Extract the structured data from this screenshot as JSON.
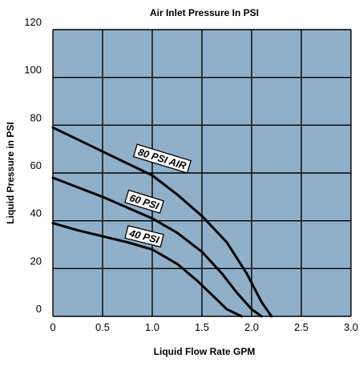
{
  "chart_data": {
    "type": "line",
    "title": "Air Inlet Pressure In PSI",
    "xlabel": "Liquid Flow Rate GPM",
    "ylabel": "Liquid Pressure in PSI",
    "xlim": [
      0,
      3.0
    ],
    "ylim": [
      0,
      120
    ],
    "x_ticks": [
      0,
      0.5,
      1.0,
      1.5,
      2.0,
      2.5,
      3.0
    ],
    "x_tick_labels": [
      "0",
      "0.5",
      "1.0",
      "1.5",
      "2.0",
      "2.5",
      "3.0"
    ],
    "y_ticks": [
      0,
      20,
      40,
      60,
      80,
      100,
      120
    ],
    "y_tick_labels": [
      "0",
      "20",
      "40",
      "60",
      "80",
      "100",
      "120"
    ],
    "grid": true,
    "colors": {
      "plot_background": "#8fb0c8",
      "grid": "#000000",
      "line": "#000000",
      "label_box": "#ffffff"
    },
    "series": [
      {
        "name": "80 PSI AIR",
        "x": [
          0,
          0.25,
          0.5,
          0.75,
          1.0,
          1.25,
          1.5,
          1.75,
          1.95,
          2.1,
          2.2
        ],
        "y": [
          79,
          74,
          69,
          64,
          59,
          51,
          42,
          31,
          18,
          6,
          0
        ]
      },
      {
        "name": "60 PSI",
        "x": [
          0,
          0.25,
          0.5,
          0.75,
          1.0,
          1.25,
          1.5,
          1.7,
          1.85,
          2.0,
          2.1
        ],
        "y": [
          58,
          54,
          50,
          45.5,
          41,
          35,
          27,
          18,
          10,
          3,
          0
        ]
      },
      {
        "name": "40 PSI",
        "x": [
          0,
          0.25,
          0.5,
          0.75,
          1.0,
          1.25,
          1.45,
          1.6,
          1.75,
          1.9
        ],
        "y": [
          39,
          36,
          33.5,
          31,
          28,
          22,
          15,
          9,
          3,
          0
        ]
      }
    ]
  }
}
